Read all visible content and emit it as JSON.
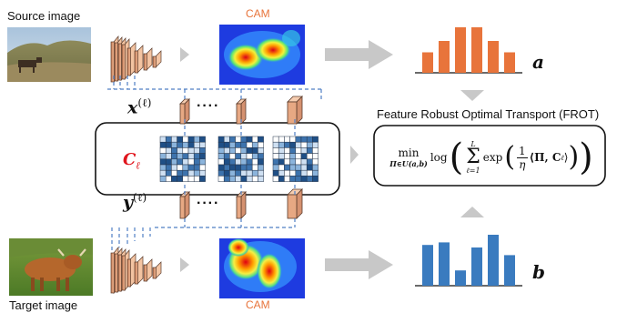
{
  "labels": {
    "source": "Source image",
    "target": "Target image",
    "cam_top": "CAM",
    "cam_bottom": "CAM",
    "frot_title": "Feature Robust Optimal Transport (FROT)",
    "a": "a",
    "b": "b",
    "x_var": "x",
    "y_var": "y",
    "layer_sup": "(ℓ)",
    "c_var": "C",
    "c_sub": "ℓ",
    "dots": "····"
  },
  "formula": {
    "min": "min",
    "min_sub": "Π∈U(a,b)",
    "log": "log",
    "sum_upper": "L",
    "sum_lower": "ℓ=1",
    "exp": "exp",
    "frac_num": "1",
    "frac_den": "η",
    "inner": "⟨Π, C",
    "inner_sub": "ℓ",
    "inner_close": "⟩"
  },
  "colors": {
    "accent_orange": "#e8743b",
    "accent_blue": "#3a7bbf",
    "dashed_blue": "#4f7fc4",
    "feature_tan": "#e7a883",
    "gray_arrow": "#c8c8c8",
    "red_label": "#e0151d"
  },
  "histogram_a": [
    0.45,
    0.7,
    1.0,
    1.0,
    0.7,
    0.45
  ],
  "histogram_b": [
    0.8,
    0.85,
    0.3,
    0.75,
    1.0,
    0.6
  ]
}
